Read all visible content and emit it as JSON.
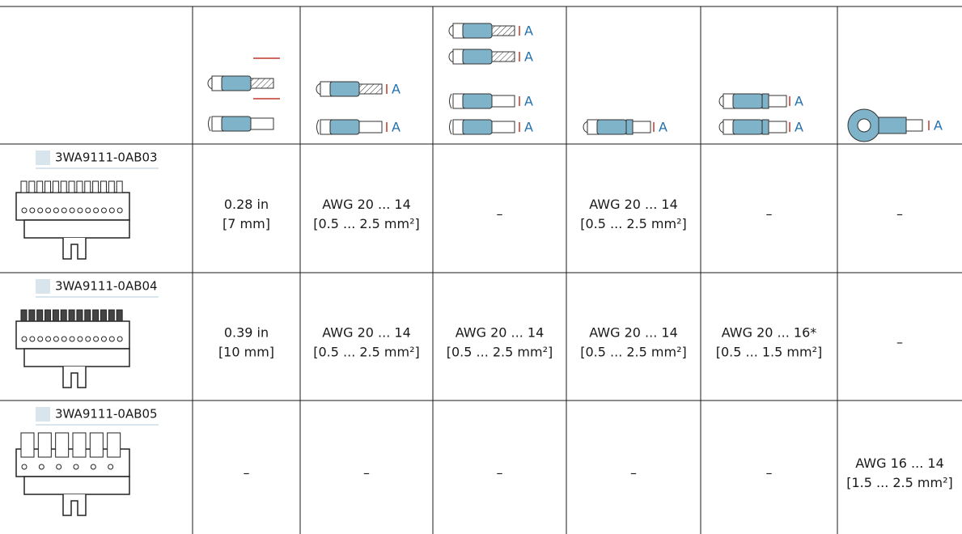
{
  "table": {
    "icon_label": "A",
    "rows": [
      {
        "code": "3WA9111-0AB03",
        "cells": [
          [
            "0.28 in",
            "[7 mm]"
          ],
          [
            "AWG 20 ... 14",
            "[0.5 ... 2.5 mm²]"
          ],
          [
            "–"
          ],
          [
            "AWG 20 ... 14",
            "[0.5 ... 2.5 mm²]"
          ],
          [
            "–"
          ],
          [
            "–"
          ]
        ]
      },
      {
        "code": "3WA9111-0AB04",
        "cells": [
          [
            "0.39 in",
            "[10 mm]"
          ],
          [
            "AWG 20 ... 14",
            "[0.5 ... 2.5 mm²]"
          ],
          [
            "AWG 20 ... 14",
            "[0.5 ... 2.5 mm²]"
          ],
          [
            "AWG 20 ... 14",
            "[0.5 ... 2.5 mm²]"
          ],
          [
            "AWG 20 ... 16*",
            "[0.5 ... 1.5 mm²]"
          ],
          [
            "–"
          ]
        ]
      },
      {
        "code": "3WA9111-0AB05",
        "cells": [
          [
            "–"
          ],
          [
            "–"
          ],
          [
            "–"
          ],
          [
            "–"
          ],
          [
            "–"
          ],
          [
            "AWG 16 ... 14",
            "[1.5 ... 2.5 mm²]"
          ]
        ]
      }
    ]
  }
}
